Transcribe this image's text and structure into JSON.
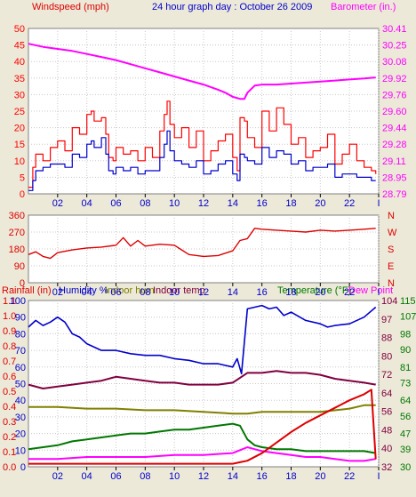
{
  "title": "24 hour graph day : October 26 2009",
  "colors": {
    "background": "#ece9d8",
    "plot": "#ffffff",
    "grid": "#c8c8c8",
    "wind_gust": "#ff0000",
    "wind_avg": "#0000cc",
    "barometer": "#ff00ff",
    "direction": "#dd0000",
    "title": "#0000cc",
    "rainfall": "#dd0000",
    "humidity": "#0000cc",
    "indoor_hum": "#808000",
    "indoor_temp": "#800040",
    "temperature": "#007700",
    "dew_point": "#ff00ff"
  },
  "chart_data": [
    {
      "type": "line",
      "left_label": "Windspeed (mph)",
      "right_label": "Barometer (in.)",
      "x_ticks": [
        "02",
        "04",
        "06",
        "08",
        "10",
        "12",
        "14",
        "16",
        "18",
        "20",
        "22",
        "I"
      ],
      "x_tick_hours": [
        2,
        4,
        6,
        8,
        10,
        12,
        14,
        16,
        18,
        20,
        22,
        24
      ],
      "xlim": [
        0,
        24
      ],
      "ylim": [
        0,
        50
      ],
      "y_ticks": [
        0,
        5,
        10,
        15,
        20,
        25,
        30,
        35,
        40,
        45,
        50
      ],
      "right_ylim": [
        28.79,
        30.41
      ],
      "right_ticks": [
        "28.79",
        "28.95",
        "29.11",
        "29.28",
        "29.44",
        "29.60",
        "29.76",
        "29.92",
        "30.08",
        "30.25",
        "30.41"
      ],
      "series": [
        {
          "key": "gust",
          "x": [
            0.0,
            0.3,
            0.5,
            1.0,
            1.5,
            2.0,
            2.5,
            3.0,
            3.5,
            4.0,
            4.3,
            4.5,
            5.0,
            5.3,
            5.5,
            5.8,
            6.0,
            6.5,
            7.0,
            7.5,
            8.0,
            8.5,
            9.0,
            9.3,
            9.5,
            9.7,
            10.0,
            10.5,
            11.0,
            11.5,
            12.0,
            12.5,
            13.0,
            13.5,
            14.0,
            14.3,
            14.5,
            14.8,
            15.0,
            15.5,
            16.0,
            16.5,
            17.0,
            17.5,
            18.0,
            18.5,
            19.0,
            19.5,
            20.0,
            20.5,
            21.0,
            21.5,
            22.0,
            22.5,
            23.0,
            23.5,
            23.8
          ],
          "values": [
            2,
            8,
            12,
            10,
            14,
            16,
            13,
            20,
            18,
            24,
            25,
            22,
            23,
            18,
            11,
            10,
            14,
            12,
            13,
            10,
            14,
            11,
            19,
            24,
            28,
            21,
            17,
            20,
            14,
            19,
            10,
            13,
            16,
            18,
            11,
            7,
            23,
            22,
            17,
            14,
            25,
            19,
            26,
            21,
            15,
            17,
            11,
            13,
            14,
            18,
            9,
            12,
            15,
            10,
            8,
            7,
            6
          ]
        },
        {
          "key": "average",
          "x": [
            0.0,
            0.3,
            0.5,
            1.0,
            1.5,
            2.0,
            2.5,
            3.0,
            3.5,
            4.0,
            4.3,
            4.5,
            5.0,
            5.3,
            5.5,
            5.8,
            6.0,
            6.5,
            7.0,
            7.5,
            8.0,
            8.5,
            9.0,
            9.3,
            9.5,
            9.7,
            10.0,
            10.5,
            11.0,
            11.5,
            12.0,
            12.5,
            13.0,
            13.5,
            14.0,
            14.3,
            14.5,
            14.8,
            15.0,
            15.5,
            16.0,
            16.5,
            17.0,
            17.5,
            18.0,
            18.5,
            19.0,
            19.5,
            20.0,
            20.5,
            21.0,
            21.5,
            22.0,
            22.5,
            23.0,
            23.5,
            23.8
          ],
          "values": [
            1,
            4,
            7,
            8,
            9,
            9,
            8,
            12,
            11,
            15,
            16,
            14,
            17,
            12,
            7,
            6,
            8,
            7,
            8,
            6,
            7,
            7,
            11,
            15,
            19,
            13,
            10,
            9,
            8,
            10,
            6,
            7,
            9,
            10,
            6,
            4,
            12,
            11,
            10,
            9,
            14,
            11,
            13,
            12,
            9,
            10,
            7,
            8,
            8,
            9,
            5,
            6,
            6,
            5,
            5,
            4,
            4
          ]
        },
        {
          "key": "barometer",
          "axis": "right",
          "x": [
            0.0,
            1.0,
            2.0,
            3.0,
            4.0,
            5.0,
            6.0,
            7.0,
            8.0,
            9.0,
            10.0,
            11.0,
            12.0,
            13.0,
            13.5,
            14.0,
            14.5,
            14.8,
            15.0,
            15.5,
            16.0,
            17.0,
            18.0,
            19.0,
            20.0,
            21.0,
            22.0,
            23.0,
            23.8
          ],
          "values": [
            30.26,
            30.23,
            30.21,
            30.19,
            30.16,
            30.13,
            30.1,
            30.06,
            30.02,
            29.98,
            29.94,
            29.9,
            29.86,
            29.81,
            29.78,
            29.74,
            29.72,
            29.72,
            29.78,
            29.85,
            29.86,
            29.86,
            29.87,
            29.88,
            29.89,
            29.9,
            29.91,
            29.92,
            29.93
          ]
        }
      ]
    },
    {
      "type": "line",
      "ylim": [
        0,
        360
      ],
      "y_ticks": [
        0,
        90,
        180,
        270,
        360
      ],
      "right_ticks": [
        "N",
        "W",
        "S",
        "E",
        "N"
      ],
      "x_ticks": [
        "02",
        "04",
        "06",
        "08",
        "10",
        "12",
        "14",
        "16",
        "18",
        "20",
        "22",
        "I"
      ],
      "x_tick_hours": [
        2,
        4,
        6,
        8,
        10,
        12,
        14,
        16,
        18,
        20,
        22,
        24
      ],
      "xlim": [
        0,
        24
      ],
      "series": [
        {
          "key": "direction",
          "x": [
            0.0,
            0.5,
            1.0,
            1.5,
            2.0,
            3.0,
            4.0,
            5.0,
            6.0,
            6.5,
            7.0,
            7.5,
            8.0,
            9.0,
            10.0,
            10.5,
            11.0,
            12.0,
            13.0,
            14.0,
            14.5,
            15.0,
            15.5,
            16.0,
            17.0,
            18.0,
            19.0,
            20.0,
            21.0,
            22.0,
            23.0,
            23.8
          ],
          "values": [
            150,
            165,
            140,
            130,
            160,
            175,
            185,
            190,
            200,
            240,
            195,
            225,
            195,
            205,
            200,
            175,
            150,
            140,
            145,
            170,
            225,
            235,
            290,
            285,
            280,
            275,
            270,
            280,
            275,
            280,
            285,
            290
          ]
        }
      ]
    },
    {
      "type": "line",
      "legend": [
        "Rainfall (in)",
        "Humidity %",
        "Indoor hum",
        "Indoor temp",
        "Temperature (°F)",
        "Dew Point"
      ],
      "left_ticks": [
        "0.0",
        "0.1",
        "0.2",
        "0.3",
        "0.4",
        "0.5",
        "0.6",
        "0.7",
        "0.8",
        "0.9",
        "1.0",
        "1.1"
      ],
      "left_ylim": [
        0,
        1.1
      ],
      "humidity_ticks": [
        0,
        10,
        20,
        30,
        40,
        50,
        60,
        70,
        80,
        90,
        100
      ],
      "ylim": [
        0,
        100
      ],
      "right_ticks_1": [
        30,
        39,
        47,
        56,
        64,
        73,
        81,
        90,
        98,
        107,
        115
      ],
      "right_ticks_2": [
        32,
        40,
        48,
        56,
        64,
        72,
        80,
        88,
        97,
        104
      ],
      "right_ylim": [
        30,
        115
      ],
      "x_ticks": [
        "02",
        "04",
        "06",
        "08",
        "10",
        "12",
        "14",
        "16",
        "18",
        "20",
        "22",
        "I"
      ],
      "x_tick_hours": [
        2,
        4,
        6,
        8,
        10,
        12,
        14,
        16,
        18,
        20,
        22,
        24
      ],
      "xlim": [
        0,
        24
      ],
      "series": [
        {
          "key": "humidity",
          "x": [
            0.0,
            0.5,
            1.0,
            1.5,
            2.0,
            2.5,
            3.0,
            3.5,
            4.0,
            5.0,
            6.0,
            7.0,
            8.0,
            9.0,
            10.0,
            11.0,
            12.0,
            13.0,
            14.0,
            14.3,
            14.6,
            15.0,
            15.5,
            16.0,
            16.5,
            17.0,
            17.5,
            18.0,
            19.0,
            20.0,
            20.5,
            21.0,
            22.0,
            23.0,
            23.8
          ],
          "values": [
            84,
            88,
            85,
            87,
            90,
            87,
            80,
            78,
            74,
            70,
            70,
            68,
            67,
            67,
            65,
            64,
            62,
            62,
            60,
            65,
            56,
            95,
            96,
            97,
            95,
            96,
            91,
            93,
            88,
            86,
            84,
            85,
            86,
            90,
            96
          ]
        },
        {
          "key": "indoor_temp",
          "axis": "right",
          "x": [
            0.0,
            1.0,
            2.0,
            3.0,
            4.0,
            5.0,
            6.0,
            7.0,
            8.0,
            9.0,
            10.0,
            11.0,
            12.0,
            13.0,
            14.0,
            15.0,
            16.0,
            17.0,
            18.0,
            19.0,
            20.0,
            21.0,
            22.0,
            23.0,
            23.8
          ],
          "values": [
            72,
            70,
            71,
            72,
            73,
            74,
            76,
            75,
            74,
            73,
            73,
            72,
            72,
            72,
            73,
            78,
            78,
            79,
            78,
            78,
            77,
            75,
            74,
            73,
            72
          ]
        },
        {
          "key": "indoor_hum",
          "x": [
            0.0,
            2.0,
            4.0,
            6.0,
            8.0,
            10.0,
            12.0,
            14.0,
            15.0,
            16.0,
            18.0,
            20.0,
            22.0,
            23.0,
            23.8
          ],
          "values": [
            36,
            36,
            35,
            35,
            34,
            34,
            33,
            32,
            32,
            33,
            33,
            33,
            35,
            37,
            37
          ]
        },
        {
          "key": "temperature",
          "axis": "right",
          "x": [
            0.0,
            1.0,
            2.0,
            3.0,
            4.0,
            5.0,
            6.0,
            7.0,
            8.0,
            9.0,
            10.0,
            11.0,
            12.0,
            13.0,
            14.0,
            14.5,
            15.0,
            15.5,
            16.0,
            17.0,
            18.0,
            19.0,
            20.0,
            21.0,
            22.0,
            23.0,
            23.8
          ],
          "values": [
            39,
            40,
            41,
            43,
            44,
            45,
            46,
            47,
            47,
            48,
            49,
            49,
            50,
            51,
            52,
            51,
            44,
            41,
            40,
            39,
            39,
            38,
            38,
            38,
            38,
            38,
            37
          ]
        },
        {
          "key": "dew_point",
          "axis": "right",
          "x": [
            0.0,
            2.0,
            4.0,
            6.0,
            8.0,
            10.0,
            12.0,
            14.0,
            15.0,
            15.5,
            16.0,
            17.0,
            18.0,
            19.0,
            20.0,
            21.0,
            22.0,
            23.0,
            23.8
          ],
          "values": [
            34,
            34,
            35,
            35,
            35,
            36,
            36,
            37,
            40,
            39,
            38,
            37,
            36,
            35,
            35,
            34,
            33,
            33,
            34
          ]
        },
        {
          "key": "rainfall",
          "axis": "left",
          "x": [
            0.0,
            14.0,
            14.5,
            15.0,
            16.0,
            17.0,
            18.0,
            19.0,
            20.0,
            21.0,
            22.0,
            23.0,
            23.5,
            23.8
          ],
          "values": [
            0.02,
            0.02,
            0.03,
            0.04,
            0.09,
            0.16,
            0.23,
            0.29,
            0.34,
            0.39,
            0.44,
            0.48,
            0.51,
            0.05
          ]
        }
      ]
    }
  ]
}
